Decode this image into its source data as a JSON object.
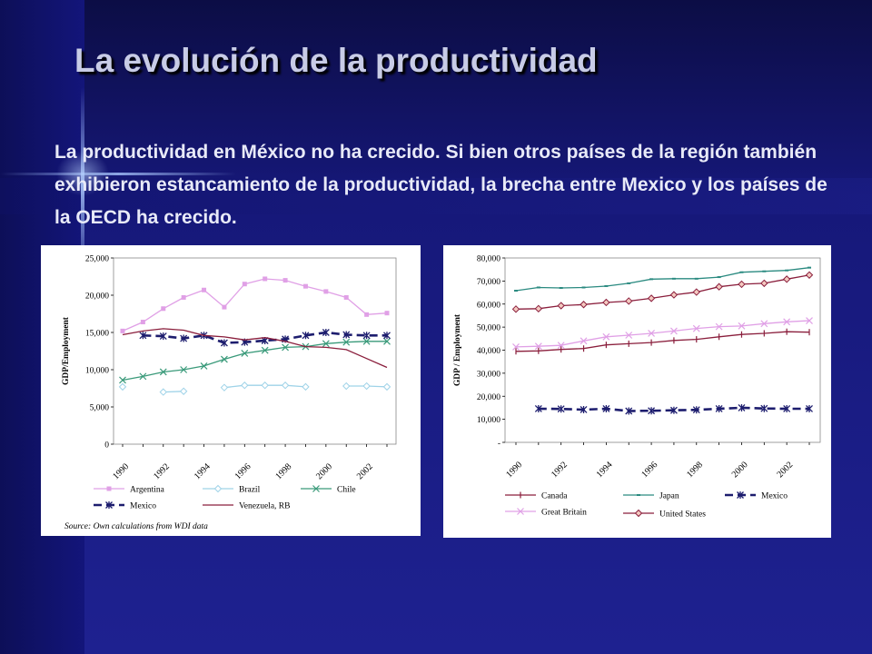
{
  "slide": {
    "title": "La evolución de la productividad",
    "body": "La productividad en México no ha crecido. Si bien otros países de la región también exhibieron estancamiento de la productividad, la brecha entre Mexico y los países de la OECD ha crecido."
  },
  "chart_data": [
    {
      "type": "line",
      "title": "",
      "xlabel": "",
      "ylabel": "GDP/Employment",
      "ylim": [
        0,
        25000
      ],
      "yticks": [
        0,
        5000,
        10000,
        15000,
        20000,
        25000
      ],
      "ytick_labels": [
        "0",
        "5,000",
        "10,000",
        "15,000",
        "20,000",
        "25,000"
      ],
      "x": [
        1990,
        1991,
        1992,
        1993,
        1994,
        1995,
        1996,
        1997,
        1998,
        1999,
        2000,
        2001,
        2002,
        2003
      ],
      "xtick_labels": [
        "1990",
        "1992",
        "1994",
        "1996",
        "1998",
        "2000",
        "2002"
      ],
      "grid": false,
      "legend": "bottom",
      "source": "Source: Own calculations from WDI data",
      "series": [
        {
          "name": "Argentina",
          "color": "#e0a0e6",
          "marker": "square",
          "values": [
            15200,
            16400,
            18200,
            19700,
            20700,
            18400,
            21500,
            22200,
            22000,
            21200,
            20500,
            19700,
            17400,
            17600
          ]
        },
        {
          "name": "Brazil",
          "color": "#9fd3e8",
          "marker": "diamond",
          "values": [
            7700,
            null,
            7000,
            7100,
            null,
            7600,
            7900,
            7900,
            7900,
            7700,
            null,
            7800,
            7800,
            7700
          ]
        },
        {
          "name": "Chile",
          "color": "#3a9a7a",
          "marker": "x",
          "values": [
            8600,
            9100,
            9700,
            10000,
            10500,
            11400,
            12200,
            12600,
            13000,
            13100,
            13500,
            13700,
            13800,
            13800
          ]
        },
        {
          "name": "Mexico",
          "color": "#1d1d6e",
          "marker": "star",
          "dashed": true,
          "values": [
            null,
            14600,
            14500,
            14200,
            14600,
            13600,
            13700,
            13900,
            14100,
            14600,
            15000,
            14700,
            14600,
            14600
          ]
        },
        {
          "name": "Venezuela, RB",
          "color": "#8a1e3c",
          "marker": "none",
          "values": [
            14700,
            15200,
            15500,
            15300,
            14600,
            14400,
            14000,
            14300,
            13800,
            13100,
            13000,
            12700,
            11500,
            10300
          ]
        }
      ]
    },
    {
      "type": "line",
      "title": "",
      "xlabel": "",
      "ylabel": "GDP / Employment",
      "ylim": [
        0,
        80000
      ],
      "yticks": [
        0,
        10000,
        20000,
        30000,
        40000,
        50000,
        60000,
        70000,
        80000
      ],
      "ytick_labels": [
        "-",
        "10,000",
        "20,000",
        "30,000",
        "40,000",
        "50,000",
        "60,000",
        "70,000",
        "80,000"
      ],
      "x": [
        1990,
        1991,
        1992,
        1993,
        1994,
        1995,
        1996,
        1997,
        1998,
        1999,
        2000,
        2001,
        2002,
        2003
      ],
      "xtick_labels": [
        "1990",
        "1992",
        "1994",
        "1996",
        "1998",
        "2000",
        "2002"
      ],
      "grid": false,
      "legend": "bottom",
      "series": [
        {
          "name": "Canada",
          "color": "#8a1e3c",
          "marker": "plus",
          "values": [
            39500,
            39700,
            40300,
            40700,
            42300,
            42800,
            43300,
            44200,
            44700,
            45800,
            46800,
            47300,
            48000,
            47800
          ]
        },
        {
          "name": "Japan",
          "color": "#2a8a80",
          "marker": "dash",
          "values": [
            65800,
            67200,
            67000,
            67200,
            67800,
            69000,
            70800,
            71000,
            71000,
            71700,
            73800,
            74200,
            74600,
            75800
          ]
        },
        {
          "name": "Mexico",
          "color": "#1d1d6e",
          "marker": "star",
          "dashed": true,
          "values": [
            null,
            14600,
            14500,
            14200,
            14600,
            13600,
            13700,
            13900,
            14100,
            14600,
            15000,
            14700,
            14600,
            14600
          ]
        },
        {
          "name": "Great Britain",
          "color": "#e0a0e6",
          "marker": "x",
          "values": [
            41400,
            41700,
            42100,
            44000,
            45800,
            46500,
            47300,
            48300,
            49400,
            50200,
            50500,
            51500,
            52300,
            52800
          ]
        },
        {
          "name": "United States",
          "color": "#8a1e3c",
          "marker": "diamond-red",
          "values": [
            57800,
            58000,
            59300,
            59800,
            60700,
            61300,
            62500,
            64000,
            65200,
            67500,
            68600,
            69000,
            70800,
            72600
          ]
        }
      ]
    }
  ]
}
